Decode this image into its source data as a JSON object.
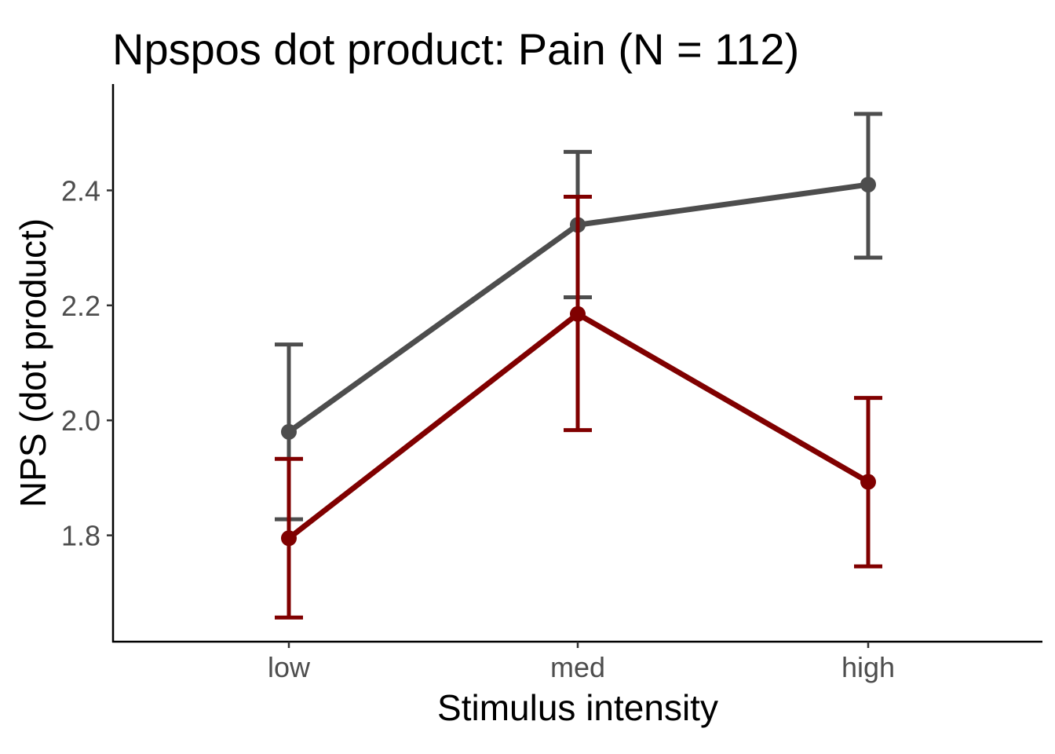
{
  "chart_data": {
    "type": "line",
    "title": "Npspos dot product: Pain  (N = 112)",
    "xlabel": "Stimulus intensity",
    "ylabel": "NPS (dot product)",
    "categories": [
      "low",
      "med",
      "high"
    ],
    "ylim": [
      1.615,
      2.585
    ],
    "yticks": [
      1.8,
      2.0,
      2.2,
      2.4
    ],
    "ytick_labels": [
      "1.8",
      "2.0",
      "2.2",
      "2.4"
    ],
    "grid": false,
    "legend": "none",
    "series": [
      {
        "color": "#4d4d4d",
        "values": [
          1.98,
          2.34,
          2.41
        ],
        "error_low": [
          1.828,
          2.214,
          2.283
        ],
        "error_high": [
          2.132,
          2.467,
          2.533
        ]
      },
      {
        "color": "#800000",
        "values": [
          1.795,
          2.185,
          1.893
        ],
        "error_low": [
          1.657,
          1.983,
          1.746
        ],
        "error_high": [
          1.933,
          2.389,
          2.039
        ]
      }
    ]
  }
}
